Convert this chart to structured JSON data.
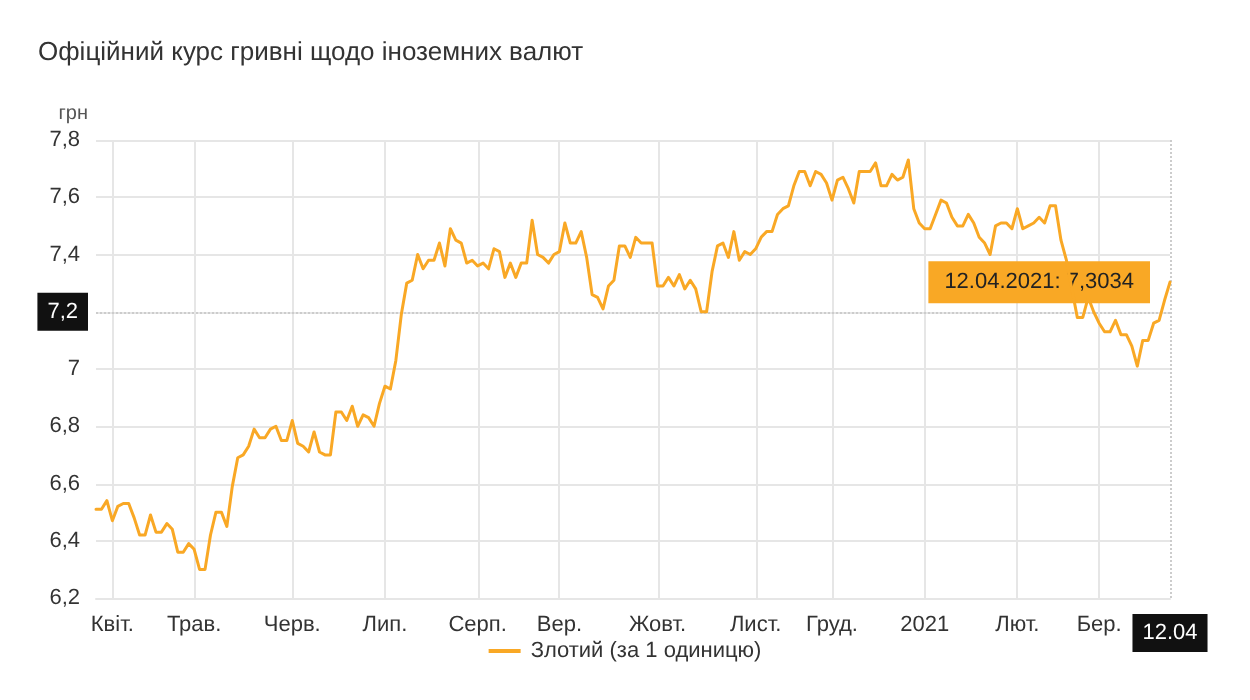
{
  "chart_data": {
    "type": "line",
    "title": "Офіційний курс гривні щодо іноземних валют",
    "ylabel": "грн",
    "categories": [
      null,
      null,
      null,
      "Квіт.",
      null,
      null,
      null,
      null,
      null,
      null,
      null,
      null,
      null,
      null,
      null,
      null,
      null,
      null,
      "Трав.",
      null,
      null,
      null,
      null,
      null,
      null,
      null,
      null,
      null,
      null,
      null,
      null,
      null,
      null,
      null,
      null,
      null,
      "Черв.",
      null,
      null,
      null,
      null,
      null,
      null,
      null,
      null,
      null,
      null,
      null,
      null,
      null,
      null,
      null,
      null,
      "Лип.",
      null,
      null,
      null,
      null,
      null,
      null,
      null,
      null,
      null,
      null,
      null,
      null,
      null,
      null,
      null,
      null,
      "Серп.",
      null,
      null,
      null,
      null,
      null,
      null,
      null,
      null,
      null,
      null,
      null,
      null,
      null,
      null,
      "Вер.",
      null,
      null,
      null,
      null,
      null,
      null,
      null,
      null,
      null,
      null,
      null,
      null,
      null,
      null,
      null,
      null,
      null,
      "Жовт.",
      null,
      null,
      null,
      null,
      null,
      null,
      null,
      null,
      null,
      null,
      null,
      null,
      null,
      null,
      null,
      null,
      null,
      "Лист.",
      null,
      null,
      null,
      null,
      null,
      null,
      null,
      null,
      null,
      null,
      null,
      null,
      null,
      "Груд.",
      null,
      null,
      null,
      null,
      null,
      null,
      null,
      null,
      null,
      null,
      null,
      null,
      null,
      null,
      null,
      null,
      "2021",
      null,
      null,
      null,
      null,
      null,
      null,
      null,
      null,
      null,
      null,
      null,
      null,
      null,
      null,
      null,
      null,
      "Лют.",
      null,
      null,
      null,
      null,
      null,
      null,
      null,
      null,
      null,
      null,
      null,
      null,
      null,
      null,
      "Бер.",
      null,
      null,
      null,
      null,
      null,
      null,
      null,
      null,
      null,
      null,
      null,
      null,
      "12.04"
    ],
    "ylim": [
      6.2,
      7.8
    ],
    "yticks": [
      {
        "value": 6.2,
        "label": "6,2"
      },
      {
        "value": 6.4,
        "label": "6,4"
      },
      {
        "value": 6.6,
        "label": "6,6"
      },
      {
        "value": 6.8,
        "label": "6,8"
      },
      7,
      {
        "value": 7.2,
        "label": "7,2"
      },
      {
        "value": 7.4,
        "label": "7,4"
      },
      {
        "value": 7.6,
        "label": "7,6"
      },
      {
        "value": 7.8,
        "label": "7,8"
      }
    ],
    "grid": true,
    "legend": "bottom",
    "marker": "none",
    "line_style": "solid",
    "ref_lines": [
      {
        "axis": "y",
        "value": 7.2,
        "label": "7,2",
        "color": "#cccccc",
        "line_style": "dotted"
      },
      {
        "axis": "x",
        "value": "12.04",
        "color": "#cccccc",
        "line_style": "dotted"
      }
    ],
    "annotations": [
      {
        "text": "12.04.2021: 7,3034",
        "x": "12.04",
        "y": 7.3034
      }
    ],
    "series": [
      {
        "name": "Злотий (за 1 одиницю)",
        "color": "#f9a825",
        "values": [
          6.51,
          6.51,
          6.54,
          6.47,
          6.52,
          6.53,
          6.53,
          6.48,
          6.42,
          6.42,
          6.49,
          6.43,
          6.43,
          6.46,
          6.44,
          6.36,
          6.36,
          6.39,
          6.37,
          6.3,
          6.3,
          6.42,
          6.5,
          6.5,
          6.45,
          6.59,
          6.69,
          6.7,
          6.73,
          6.79,
          6.76,
          6.76,
          6.79,
          6.8,
          6.75,
          6.75,
          6.82,
          6.74,
          6.73,
          6.71,
          6.78,
          6.71,
          6.7,
          6.7,
          6.85,
          6.85,
          6.82,
          6.87,
          6.8,
          6.84,
          6.83,
          6.8,
          6.88,
          6.94,
          6.93,
          7.03,
          7.19,
          7.3,
          7.31,
          7.4,
          7.35,
          7.38,
          7.38,
          7.44,
          7.36,
          7.49,
          7.45,
          7.44,
          7.37,
          7.38,
          7.36,
          7.37,
          7.35,
          7.42,
          7.41,
          7.32,
          7.37,
          7.32,
          7.37,
          7.37,
          7.52,
          7.4,
          7.39,
          7.37,
          7.4,
          7.41,
          7.51,
          7.44,
          7.44,
          7.48,
          7.39,
          7.26,
          7.25,
          7.21,
          7.29,
          7.31,
          7.43,
          7.43,
          7.39,
          7.46,
          7.44,
          7.44,
          7.44,
          7.29,
          7.29,
          7.32,
          7.29,
          7.33,
          7.28,
          7.31,
          7.28,
          7.2,
          7.2,
          7.34,
          7.43,
          7.44,
          7.39,
          7.48,
          7.38,
          7.41,
          7.4,
          7.42,
          7.46,
          7.48,
          7.48,
          7.54,
          7.56,
          7.57,
          7.64,
          7.69,
          7.69,
          7.64,
          7.69,
          7.68,
          7.65,
          7.59,
          7.66,
          7.67,
          7.63,
          7.58,
          7.69,
          7.69,
          7.69,
          7.72,
          7.64,
          7.64,
          7.68,
          7.66,
          7.67,
          7.73,
          7.56,
          7.51,
          7.49,
          7.49,
          7.54,
          7.59,
          7.58,
          7.53,
          7.5,
          7.5,
          7.54,
          7.51,
          7.46,
          7.44,
          7.4,
          7.5,
          7.51,
          7.51,
          7.49,
          7.56,
          7.49,
          7.5,
          7.51,
          7.53,
          7.51,
          7.57,
          7.57,
          7.45,
          7.38,
          7.28,
          7.18,
          7.18,
          7.25,
          7.2,
          7.16,
          7.13,
          7.13,
          7.17,
          7.12,
          7.12,
          7.08,
          7.01,
          7.1,
          7.1,
          7.16,
          7.17,
          7.24,
          7.3034
        ]
      }
    ]
  }
}
